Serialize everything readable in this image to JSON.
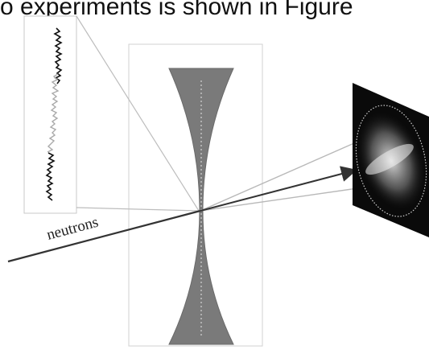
{
  "caption_fragment": "o experiments is shown in Figure",
  "beam_label": "neutrons",
  "colors": {
    "lens_fill": "#7a7a7a",
    "beam_dark": "#333333",
    "beam_light": "#b8b8b8",
    "detector_bg": "#0a0a0a",
    "frame_stroke": "#c8c8c8"
  }
}
